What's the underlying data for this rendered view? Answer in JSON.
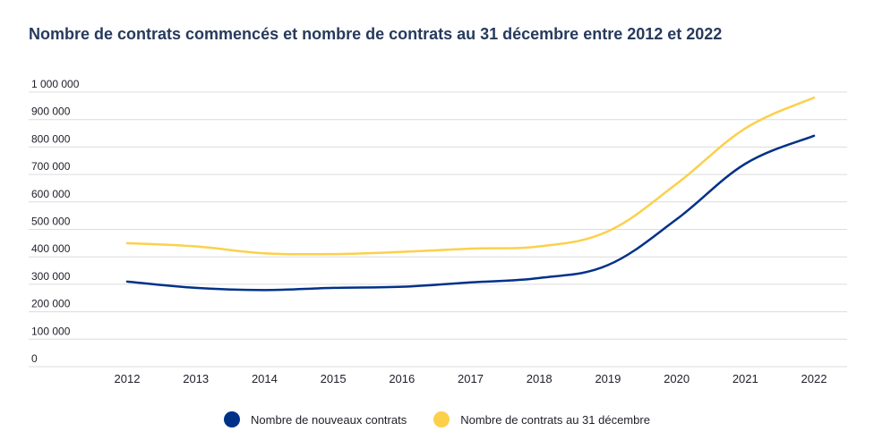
{
  "chart_data": {
    "type": "line",
    "title": "Nombre de contrats commencés et nombre de contrats au 31 décembre entre 2012 et 2022",
    "xlabel": "",
    "ylabel": "",
    "categories": [
      "2012",
      "2013",
      "2014",
      "2015",
      "2016",
      "2017",
      "2018",
      "2019",
      "2020",
      "2021",
      "2022"
    ],
    "ylim": [
      0,
      1000000
    ],
    "yticks": [
      0,
      100000,
      200000,
      300000,
      400000,
      500000,
      600000,
      700000,
      800000,
      900000,
      1000000
    ],
    "ytick_labels": [
      "0",
      "100 000",
      "200 000",
      "300 000",
      "400 000",
      "500 000",
      "600 000",
      "700 000",
      "800 000",
      "900 000",
      "1 000 000"
    ],
    "grid": true,
    "legend_position": "bottom",
    "series": [
      {
        "name": "Nombre de nouveaux contrats",
        "color": "#003189",
        "values": [
          310000,
          287000,
          279000,
          287000,
          291000,
          307000,
          323000,
          370000,
          537000,
          739000,
          841000
        ]
      },
      {
        "name": "Nombre de contrats au 31 décembre",
        "color": "#fcd04b",
        "values": [
          450000,
          438000,
          413000,
          410000,
          418000,
          430000,
          438000,
          493000,
          666000,
          868000,
          980000
        ]
      }
    ]
  }
}
